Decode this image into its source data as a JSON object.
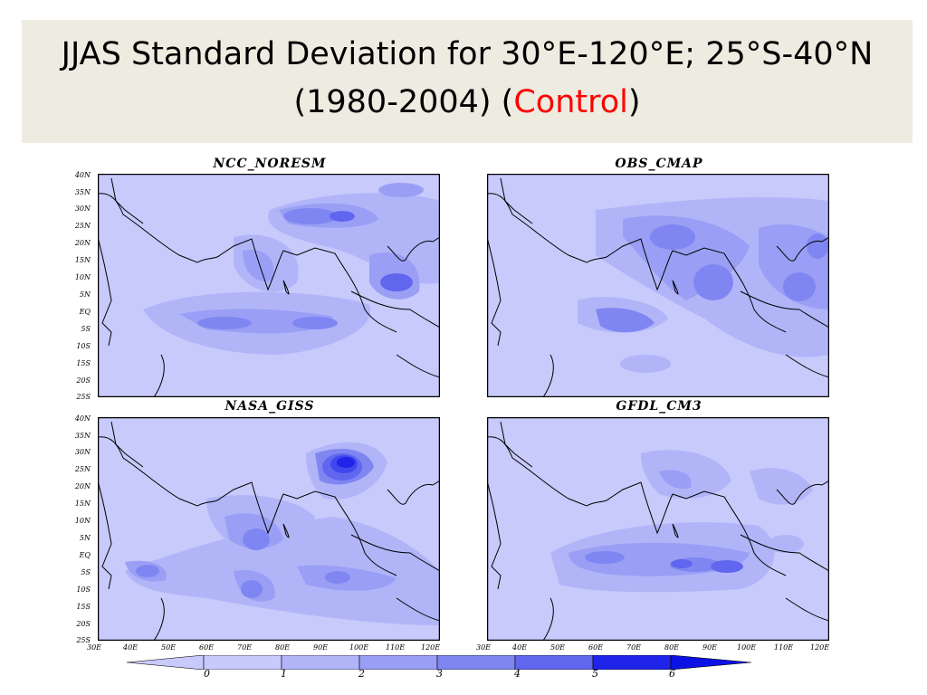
{
  "slide": {
    "title_line1": "JJAS Standard Deviation  for 30°E-120°E; 25°S-40°N",
    "title_line2_prefix": "(1980-2004) (",
    "title_line2_highlight": "Control",
    "title_line2_suffix": ")",
    "highlight_color": "#ff0000",
    "band_color": "#eeece1"
  },
  "panels": [
    {
      "title": "NCC_NORESM"
    },
    {
      "title": "OBS_CMAP"
    },
    {
      "title": "NASA_GISS"
    },
    {
      "title": "GFDL_CM3"
    }
  ],
  "lat_labels": [
    "40N",
    "35N",
    "30N",
    "25N",
    "20N",
    "15N",
    "10N",
    "5N",
    "EQ",
    "5S",
    "10S",
    "15S",
    "20S",
    "25S"
  ],
  "lon_labels": [
    "30E",
    "40E",
    "50E",
    "60E",
    "70E",
    "80E",
    "90E",
    "100E",
    "110E",
    "120E"
  ],
  "colorbar": {
    "labels": [
      "0",
      "1",
      "2",
      "3",
      "4",
      "5",
      "6"
    ],
    "colors": [
      "#c7cafb",
      "#b1b5f8",
      "#9a9ff5",
      "#7f86f1",
      "#6166ee",
      "#4147ec",
      "#1f24e8",
      "#0c12e4"
    ]
  }
}
